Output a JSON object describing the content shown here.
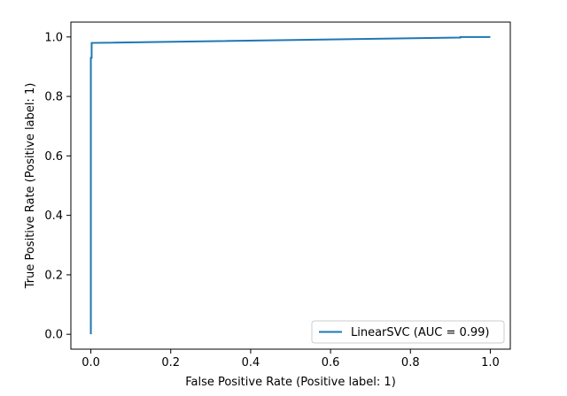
{
  "chart_data": {
    "type": "line",
    "title": "",
    "xlabel": "False Positive Rate (Positive label: 1)",
    "ylabel": "True Positive Rate (Positive label: 1)",
    "xlim": [
      -0.05,
      1.05
    ],
    "ylim": [
      -0.05,
      1.05
    ],
    "xticks": [
      0.0,
      0.2,
      0.4,
      0.6,
      0.8,
      1.0
    ],
    "yticks": [
      0.0,
      0.2,
      0.4,
      0.6,
      0.8,
      1.0
    ],
    "xtick_labels": [
      "0.0",
      "0.2",
      "0.4",
      "0.6",
      "0.8",
      "1.0"
    ],
    "ytick_labels": [
      "0.0",
      "0.2",
      "0.4",
      "0.6",
      "0.8",
      "1.0"
    ],
    "grid": false,
    "legend_position": "lower right",
    "series": [
      {
        "name": "LinearSVC (AUC = 0.99)",
        "color": "#1f77b4",
        "x": [
          0.0,
          0.0,
          0.0,
          0.0,
          0.002,
          0.002,
          0.925,
          0.925,
          1.0
        ],
        "y": [
          0.0,
          0.92,
          0.93,
          0.93,
          0.93,
          0.98,
          0.998,
          1.0,
          1.0
        ]
      }
    ]
  }
}
